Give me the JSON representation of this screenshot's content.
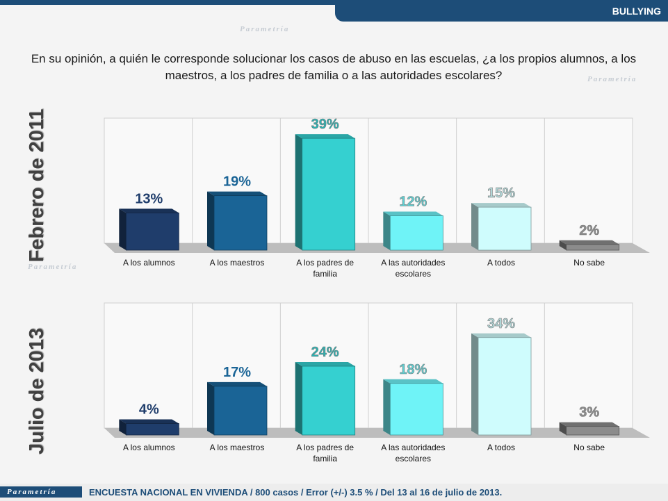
{
  "header": {
    "tag": "BULLYING"
  },
  "question": "En su opinión, a quién le corresponde solucionar los casos de abuso en las escuelas, ¿a los propios alumnos, a los maestros, a los padres de familia o a las autoridades escolares?",
  "watermark": "Parametría",
  "colors": [
    "#1f3d6b",
    "#1a6496",
    "#35d0d0",
    "#6ff3f7",
    "#cffcfd",
    "#8c8c8c"
  ],
  "chart_data": [
    {
      "type": "bar",
      "section": "Febrero de 2011",
      "categories": [
        "A los alumnos",
        "A los maestros",
        "A los padres de familia",
        "A las autoridades escolares",
        "A todos",
        "No sabe"
      ],
      "values": [
        13,
        19,
        39,
        12,
        15,
        2
      ],
      "labels": [
        "13%",
        "19%",
        "39%",
        "12%",
        "15%",
        "2%"
      ],
      "ylim": [
        0,
        40
      ]
    },
    {
      "type": "bar",
      "section": "Julio de 2013",
      "categories": [
        "A los alumnos",
        "A los maestros",
        "A los padres de familia",
        "A las autoridades escolares",
        "A todos",
        "No sabe"
      ],
      "values": [
        4,
        17,
        24,
        18,
        34,
        3
      ],
      "labels": [
        "4%",
        "17%",
        "24%",
        "18%",
        "34%",
        "3%"
      ],
      "ylim": [
        0,
        40
      ]
    }
  ],
  "footer": {
    "logo": "Parametría",
    "text": "ENCUESTA NACIONAL EN VIVIENDA / 800 casos / Error (+/-) 3.5 % / Del 13 al 16 de julio de 2013."
  }
}
